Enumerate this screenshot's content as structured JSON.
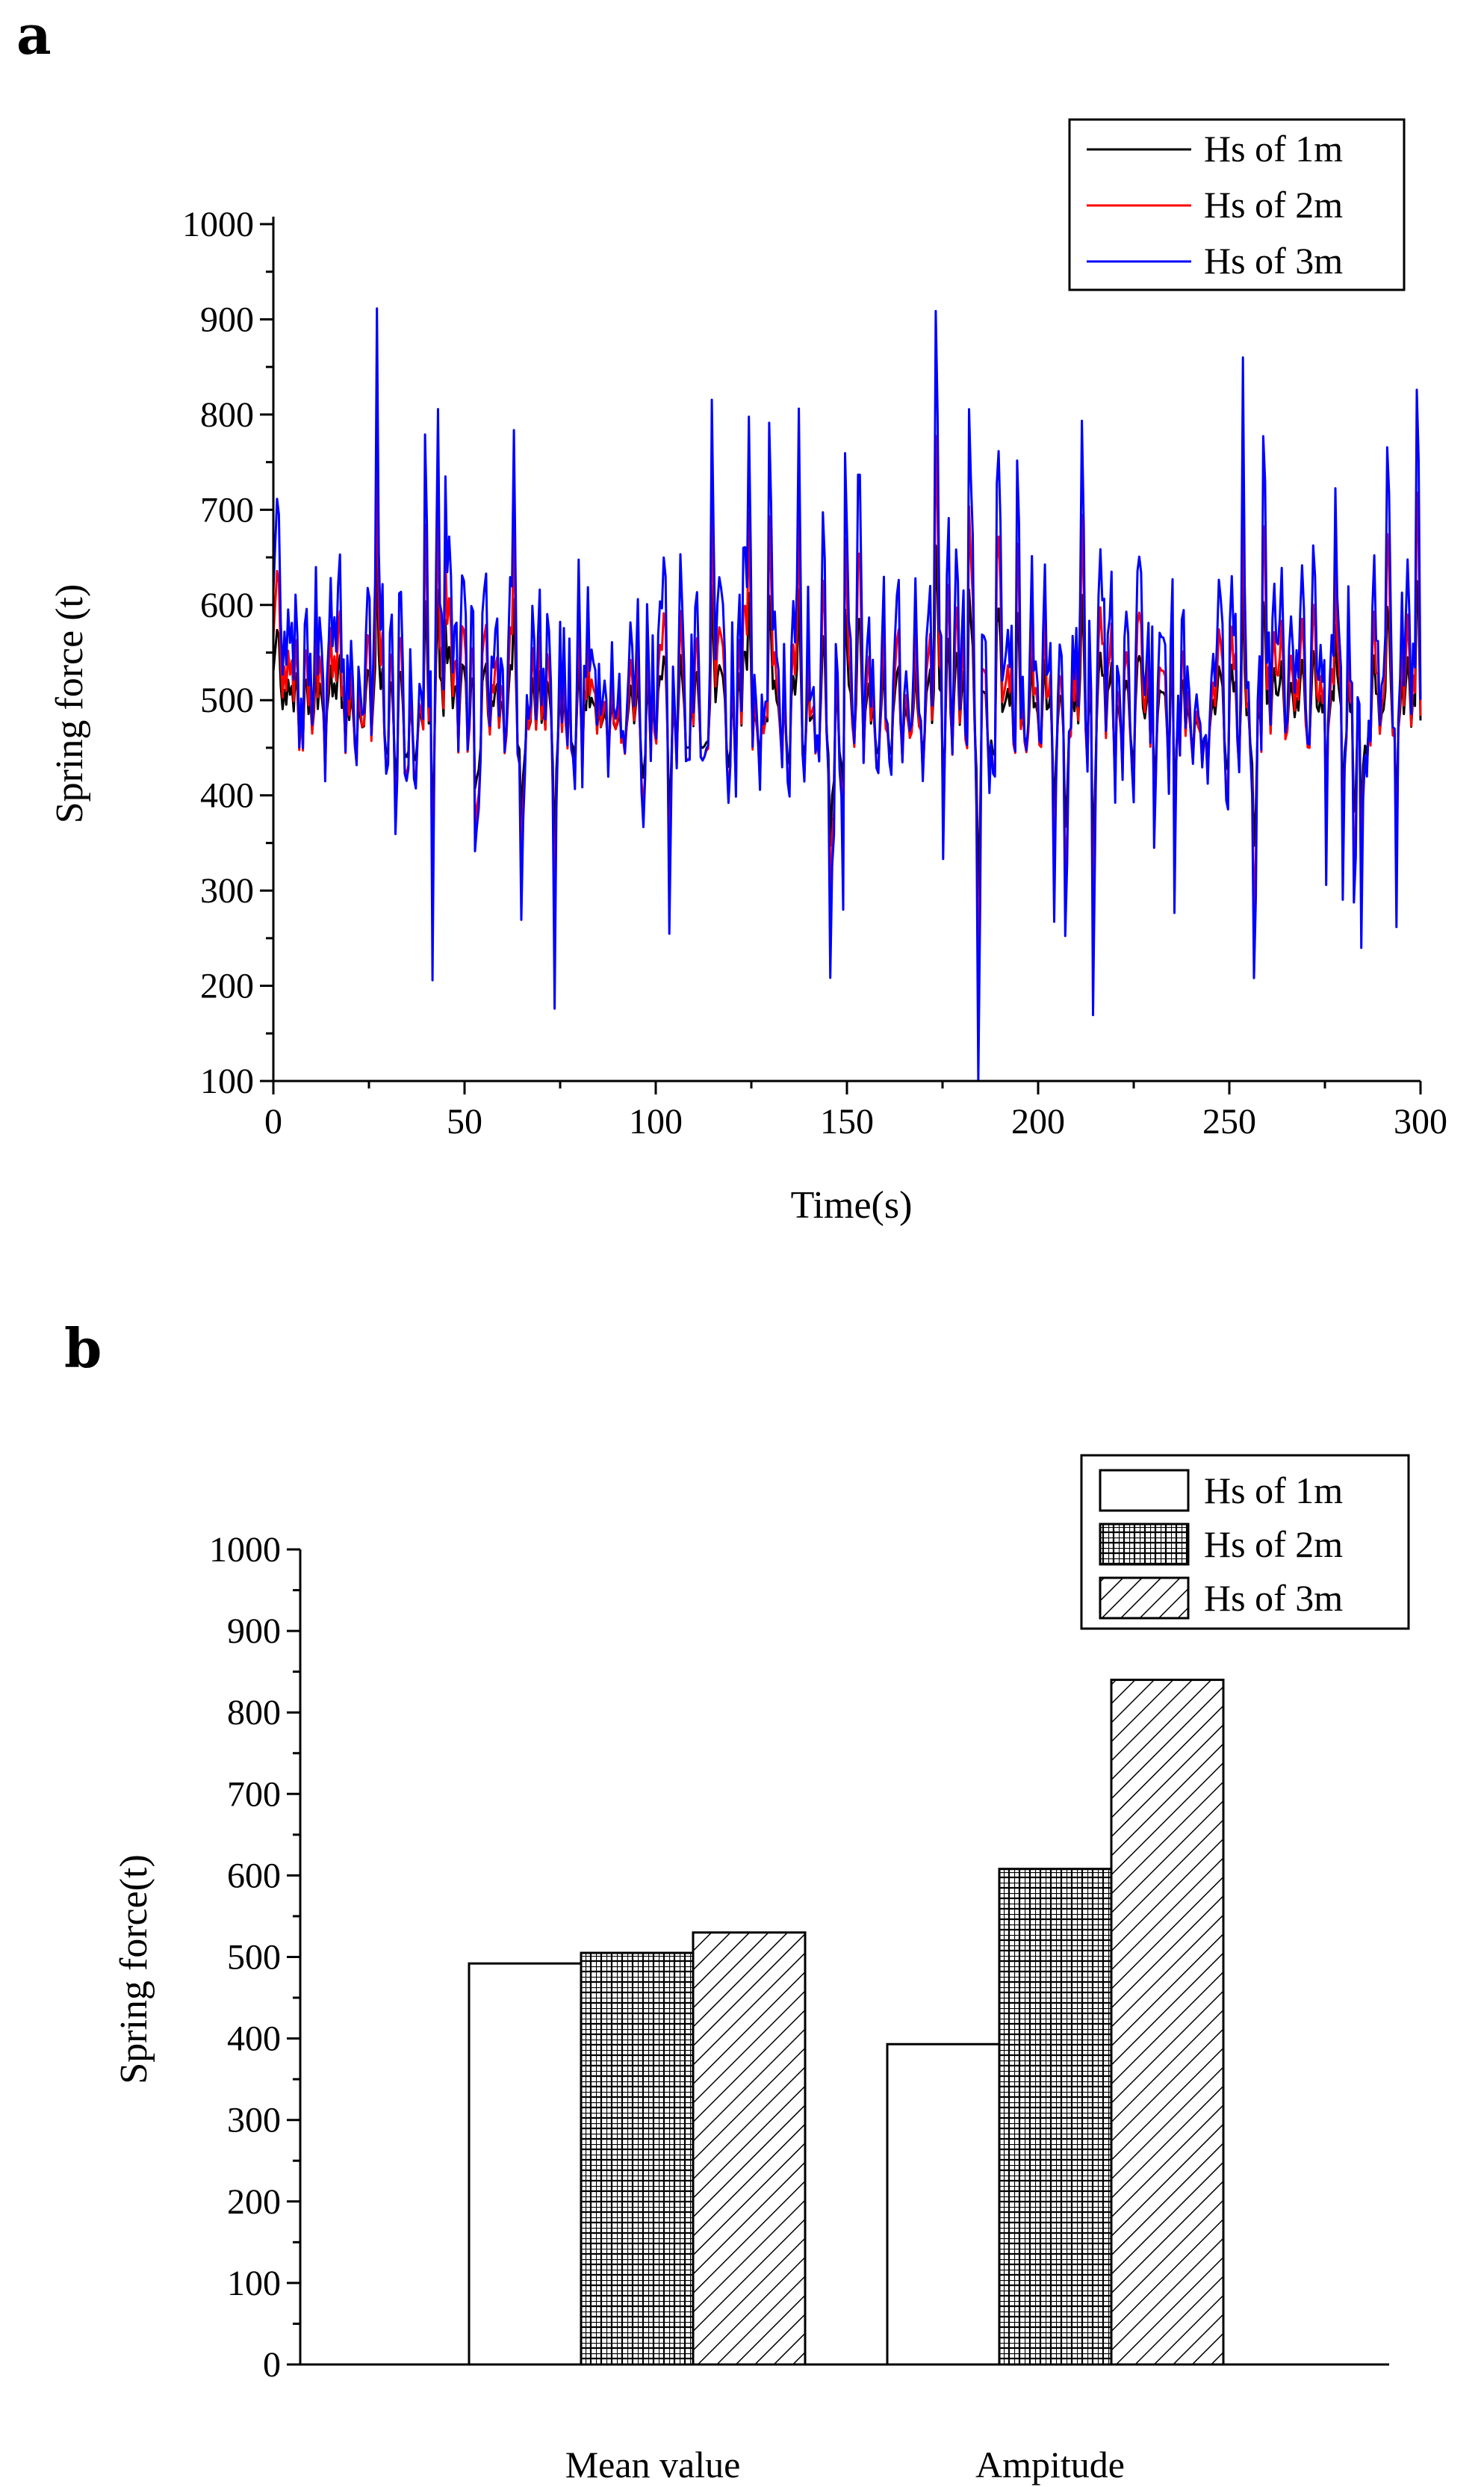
{
  "chart_data": [
    {
      "panel": "a",
      "type": "line",
      "xlabel": "Time(s)",
      "ylabel": "Spring force (t)",
      "xlim": [
        0,
        300
      ],
      "ylim": [
        100,
        1000
      ],
      "xticks": [
        0,
        50,
        100,
        150,
        200,
        250,
        300
      ],
      "yticks": [
        100,
        200,
        300,
        400,
        500,
        600,
        700,
        800,
        900,
        1000
      ],
      "legend_position": "top-right",
      "series": [
        {
          "name": "Hs of 1m",
          "color": "#000000",
          "mean": 492,
          "amplitude": 0.45,
          "seed": 7
        },
        {
          "name": "Hs of 2m",
          "color": "#ff0000",
          "mean": 505,
          "amplitude": 0.72,
          "seed": 7
        },
        {
          "name": "Hs of 3m",
          "color": "#0000ff",
          "mean": 530,
          "amplitude": 1.0,
          "seed": 7
        }
      ]
    },
    {
      "panel": "b",
      "type": "bar",
      "xlabel": "",
      "ylabel": "Spring force(t)",
      "ylim": [
        0,
        1000
      ],
      "yticks": [
        0,
        100,
        200,
        300,
        400,
        500,
        600,
        700,
        800,
        900,
        1000
      ],
      "categories": [
        "Mean value",
        "Ampitude"
      ],
      "legend_position": "top-right",
      "series": [
        {
          "name": "Hs of 1m",
          "pattern": "blank",
          "values": [
            492,
            393
          ]
        },
        {
          "name": "Hs of 2m",
          "pattern": "grid",
          "values": [
            505,
            608
          ]
        },
        {
          "name": "Hs of 3m",
          "pattern": "hatch",
          "values": [
            530,
            840
          ]
        }
      ]
    }
  ]
}
